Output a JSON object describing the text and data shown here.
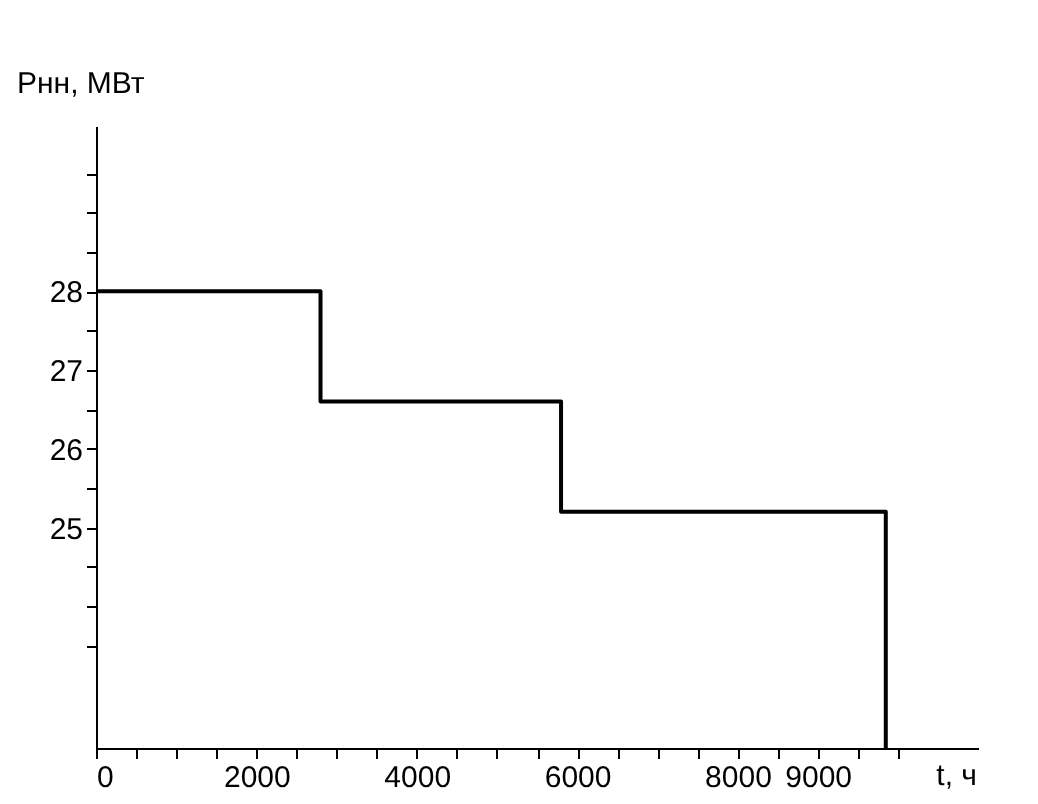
{
  "chart_data": {
    "type": "step",
    "xlabel": "t, ч",
    "ylabel": "Pнн, МВт",
    "x": [
      0,
      2800,
      5800,
      9850
    ],
    "series": [
      {
        "color": "#000000",
        "values": [
          28,
          26.6,
          25.2,
          22.2
        ]
      }
    ],
    "xlim": [
      0,
      11000
    ],
    "ylim": [
      22.2,
      30.1
    ],
    "xticks": [
      0,
      {
        "value": 500,
        "label": null
      },
      {
        "value": 1000,
        "label": null
      },
      {
        "value": 1500,
        "label": null
      },
      2000,
      {
        "value": 2500,
        "label": null
      },
      {
        "value": 3000,
        "label": null
      },
      {
        "value": 3500,
        "label": null
      },
      4000,
      {
        "value": 4500,
        "label": null
      },
      {
        "value": 5000,
        "label": null
      },
      {
        "value": 5500,
        "label": null
      },
      6000,
      {
        "value": 6500,
        "label": null
      },
      {
        "value": 7000,
        "label": null
      },
      {
        "value": 7500,
        "label": null
      },
      8000,
      {
        "value": 8500,
        "label": null
      },
      9000,
      {
        "value": 9500,
        "label": null
      },
      {
        "value": 10000,
        "label": null
      }
    ],
    "yticks": [
      {
        "value": 23.5,
        "label": null
      },
      {
        "value": 24,
        "label": null
      },
      {
        "value": 24.5,
        "label": null
      },
      25,
      {
        "value": 25.5,
        "label": null
      },
      26,
      {
        "value": 26.5,
        "label": null
      },
      27,
      {
        "value": 27.5,
        "label": null
      },
      28,
      {
        "value": 28.5,
        "label": null
      },
      {
        "value": 29,
        "label": null
      },
      {
        "value": 29.5,
        "label": null
      }
    ],
    "grid": false,
    "marker": "none",
    "line_style": "solid"
  }
}
